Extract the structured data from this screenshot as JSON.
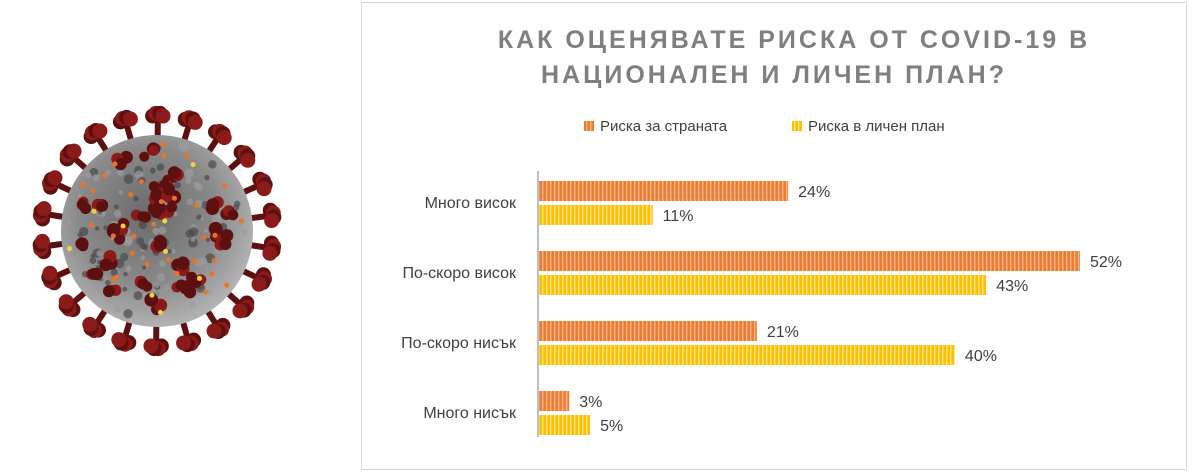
{
  "chart_data": {
    "type": "bar",
    "orientation": "horizontal",
    "title_lines": [
      "КАК ОЦЕНЯВАТЕ РИСКА ОТ COVID-19 В",
      "НАЦИОНАЛЕН И ЛИЧЕН ПЛАН?"
    ],
    "categories": [
      "Много висок",
      "По-скоро висок",
      "По-скоро нисък",
      "Много нисък"
    ],
    "series": [
      {
        "name": "Риска за страната",
        "values": [
          24,
          52,
          21,
          3
        ],
        "labels": [
          "24%",
          "52%",
          "21%",
          "3%"
        ],
        "color": "#ed7d31",
        "stripe": "#f4b183"
      },
      {
        "name": "Риска в личен план",
        "values": [
          11,
          43,
          40,
          5
        ],
        "labels": [
          "11%",
          "43%",
          "40%",
          "5%"
        ],
        "color": "#ffc000",
        "stripe": "#ffe699"
      }
    ],
    "legend_position": "top",
    "grid": false,
    "xlim": [
      0,
      52
    ]
  },
  "illustration": {
    "name": "coronavirus-illustration",
    "colors": {
      "spike": "#8b1a1a",
      "spike_dark": "#5e0f0f",
      "body": "#8a8a8a",
      "body_dark": "#4a4a4a",
      "dot_orange": "#e8742a",
      "dot_yellow": "#f2d43a"
    }
  }
}
